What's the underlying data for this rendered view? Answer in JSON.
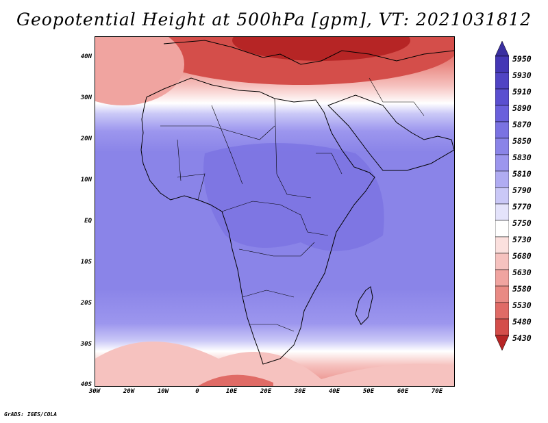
{
  "title": "Geopotential Height at 500hPa [gpm], VT: 2021031812",
  "credit": "GrADS: IGES/COLA",
  "map": {
    "lon_range": [
      -30,
      75
    ],
    "lat_range": [
      -40,
      45
    ],
    "lat_ticks": [
      "40N",
      "30N",
      "20N",
      "10N",
      "EQ",
      "10S",
      "20S",
      "30S",
      "40S"
    ],
    "lon_ticks": [
      "30W",
      "20W",
      "10W",
      "0",
      "10E",
      "20E",
      "30E",
      "40E",
      "50E",
      "60E",
      "70E"
    ]
  },
  "colorbar": {
    "levels": [
      "5950",
      "5930",
      "5910",
      "5890",
      "5870",
      "5850",
      "5830",
      "5810",
      "5790",
      "5770",
      "5750",
      "5730",
      "5680",
      "5630",
      "5580",
      "5530",
      "5480",
      "5430"
    ],
    "colors": [
      "#3a2fa0",
      "#4437b5",
      "#5044c4",
      "#5a4fd0",
      "#6a60dc",
      "#7a72e2",
      "#8a84e8",
      "#9c96ee",
      "#b0acf2",
      "#cac8f7",
      "#e4e3fb",
      "#ffffff",
      "#fbe0de",
      "#f6c2bf",
      "#f0a4a0",
      "#e98a84",
      "#e06b66",
      "#d44e4a",
      "#b62525"
    ]
  }
}
